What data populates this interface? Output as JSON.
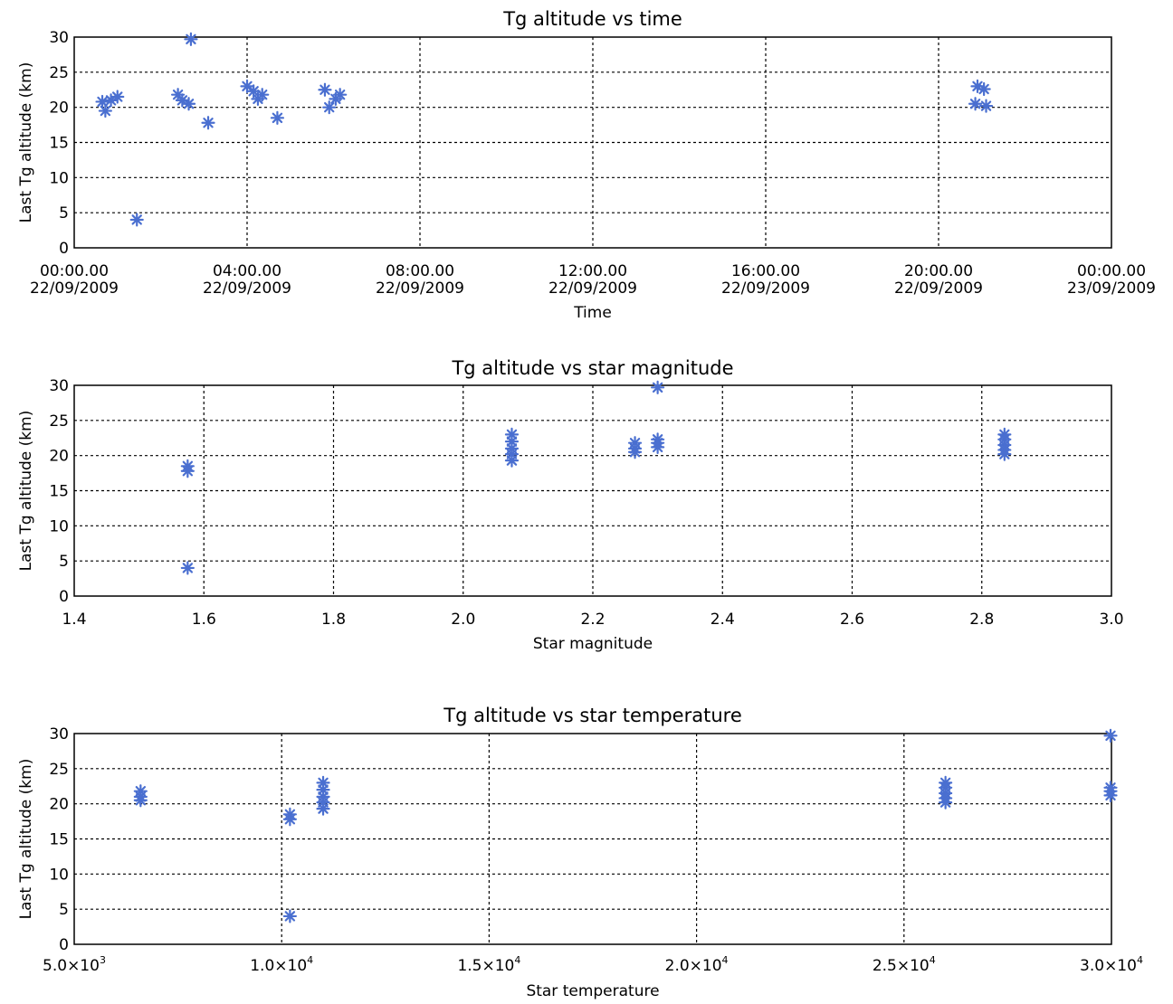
{
  "chart_data": [
    {
      "type": "scatter",
      "title": "Tg altitude vs time",
      "xlabel": "Time",
      "ylabel": "Last Tg altitude (km)",
      "x_unit": "hours",
      "xlim": [
        0,
        24
      ],
      "ylim": [
        0,
        30
      ],
      "x_ticks": [
        0,
        4,
        8,
        12,
        16,
        20,
        24
      ],
      "x_tick_labels": [
        [
          "00:00.00",
          "22/09/2009"
        ],
        [
          "04:00.00",
          "22/09/2009"
        ],
        [
          "08:00.00",
          "22/09/2009"
        ],
        [
          "12:00.00",
          "22/09/2009"
        ],
        [
          "16:00.00",
          "22/09/2009"
        ],
        [
          "20:00.00",
          "22/09/2009"
        ],
        [
          "00:00.00",
          "23/09/2009"
        ]
      ],
      "y_ticks": [
        0,
        5,
        10,
        15,
        20,
        25,
        30
      ],
      "y_tick_labels": [
        "0",
        "5",
        "10",
        "15",
        "20",
        "25",
        "30"
      ],
      "grid": true,
      "marker": "asterisk",
      "color": "#4a6fd0",
      "points": [
        [
          0.65,
          20.8
        ],
        [
          0.72,
          19.5
        ],
        [
          0.85,
          21.0
        ],
        [
          1.0,
          21.5
        ],
        [
          1.45,
          4.0
        ],
        [
          2.4,
          21.8
        ],
        [
          2.5,
          21.0
        ],
        [
          2.65,
          20.5
        ],
        [
          2.7,
          29.7
        ],
        [
          3.1,
          17.8
        ],
        [
          4.0,
          23.0
        ],
        [
          4.15,
          22.3
        ],
        [
          4.25,
          21.2
        ],
        [
          4.35,
          21.8
        ],
        [
          4.7,
          18.5
        ],
        [
          5.8,
          22.5
        ],
        [
          5.9,
          20.0
        ],
        [
          6.05,
          21.2
        ],
        [
          6.15,
          21.8
        ],
        [
          20.85,
          20.5
        ],
        [
          20.9,
          23.0
        ],
        [
          21.05,
          22.6
        ],
        [
          21.1,
          20.2
        ]
      ]
    },
    {
      "type": "scatter",
      "title": "Tg altitude vs star magnitude",
      "xlabel": "Star magnitude",
      "ylabel": "Last Tg altitude (km)",
      "xlim": [
        1.4,
        3.0
      ],
      "ylim": [
        0,
        30
      ],
      "x_ticks": [
        1.4,
        1.6,
        1.8,
        2.0,
        2.2,
        2.4,
        2.6,
        2.8,
        3.0
      ],
      "x_tick_labels": [
        "1.4",
        "1.6",
        "1.8",
        "2.0",
        "2.2",
        "2.4",
        "2.6",
        "2.8",
        "3.0"
      ],
      "y_ticks": [
        0,
        5,
        10,
        15,
        20,
        25,
        30
      ],
      "y_tick_labels": [
        "0",
        "5",
        "10",
        "15",
        "20",
        "25",
        "30"
      ],
      "grid": true,
      "marker": "asterisk",
      "color": "#4a6fd0",
      "points": [
        [
          1.575,
          18.5
        ],
        [
          1.575,
          17.8
        ],
        [
          1.575,
          4.0
        ],
        [
          2.075,
          23.0
        ],
        [
          2.075,
          22.0
        ],
        [
          2.075,
          21.0
        ],
        [
          2.075,
          20.2
        ],
        [
          2.075,
          19.3
        ],
        [
          2.265,
          21.8
        ],
        [
          2.265,
          21.0
        ],
        [
          2.265,
          20.5
        ],
        [
          2.3,
          29.7
        ],
        [
          2.3,
          22.3
        ],
        [
          2.3,
          21.8
        ],
        [
          2.3,
          21.2
        ],
        [
          2.835,
          23.0
        ],
        [
          2.835,
          22.3
        ],
        [
          2.835,
          21.5
        ],
        [
          2.835,
          20.8
        ],
        [
          2.835,
          20.2
        ]
      ]
    },
    {
      "type": "scatter",
      "title": "Tg altitude vs star temperature",
      "xlabel": "Star temperature",
      "ylabel": "Last Tg altitude (km)",
      "xlim": [
        5000,
        30000
      ],
      "ylim": [
        0,
        30
      ],
      "x_ticks": [
        5000,
        10000,
        15000,
        20000,
        25000,
        30000
      ],
      "x_tick_labels": [
        [
          "5.0×10",
          "3"
        ],
        [
          "1.0×10",
          "4"
        ],
        [
          "1.5×10",
          "4"
        ],
        [
          "2.0×10",
          "4"
        ],
        [
          "2.5×10",
          "4"
        ],
        [
          "3.0×10",
          "4"
        ]
      ],
      "y_ticks": [
        0,
        5,
        10,
        15,
        20,
        25,
        30
      ],
      "y_tick_labels": [
        "0",
        "5",
        "10",
        "15",
        "20",
        "25",
        "30"
      ],
      "grid": true,
      "marker": "asterisk",
      "color": "#4a6fd0",
      "points": [
        [
          6600,
          21.8
        ],
        [
          6600,
          21.0
        ],
        [
          6600,
          20.5
        ],
        [
          10200,
          18.5
        ],
        [
          10200,
          17.8
        ],
        [
          10200,
          4.0
        ],
        [
          11000,
          23.0
        ],
        [
          11000,
          22.0
        ],
        [
          11000,
          21.0
        ],
        [
          11000,
          20.2
        ],
        [
          11000,
          19.3
        ],
        [
          26000,
          23.0
        ],
        [
          26000,
          22.3
        ],
        [
          26000,
          21.5
        ],
        [
          26000,
          20.8
        ],
        [
          26000,
          20.2
        ],
        [
          30000,
          29.7
        ],
        [
          30000,
          22.3
        ],
        [
          30000,
          21.8
        ],
        [
          30000,
          21.2
        ]
      ]
    }
  ]
}
